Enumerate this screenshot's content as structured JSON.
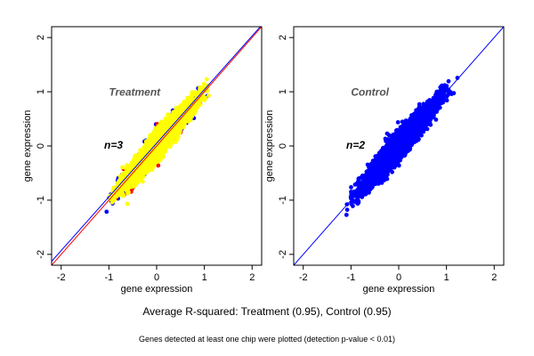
{
  "chart_data": [
    {
      "type": "scatter",
      "title": "Treatment",
      "annotation": "n=3",
      "xlabel": "gene expression",
      "ylabel": "gene expression",
      "xlim": [
        -2.2,
        2.2
      ],
      "ylim": [
        -2.2,
        2.2
      ],
      "xticks": [
        -2,
        -1,
        0,
        1,
        2
      ],
      "yticks": [
        -2,
        -1,
        0,
        1,
        2
      ],
      "grid": false,
      "layers": [
        {
          "color": "#0000ff",
          "n": 1800,
          "spread": 0.11,
          "xrange": [
            -1.05,
            1.1
          ]
        },
        {
          "color": "#ff0000",
          "n": 160,
          "spread": 0.14,
          "xrange": [
            -1.05,
            0.6
          ]
        },
        {
          "color": "#ffff00",
          "n": 5000,
          "spread": 0.12,
          "xrange": [
            -1.05,
            1.15
          ]
        }
      ],
      "fit_lines": [
        {
          "color": "#ff0000",
          "slope": 1.0,
          "intercept": 0.0
        },
        {
          "color": "#0000ff",
          "slope": 0.99,
          "intercept": 0.05
        }
      ]
    },
    {
      "type": "scatter",
      "title": "Control",
      "annotation": "n=2",
      "xlabel": "gene expression",
      "ylabel": "gene expression",
      "xlim": [
        -2.2,
        2.2
      ],
      "ylim": [
        -2.2,
        2.2
      ],
      "xticks": [
        -2,
        -1,
        0,
        1,
        2
      ],
      "yticks": [
        -2,
        -1,
        0,
        1,
        2
      ],
      "grid": false,
      "layers": [
        {
          "color": "#0000ff",
          "n": 5500,
          "spread": 0.12,
          "xrange": [
            -1.1,
            1.15
          ]
        }
      ],
      "fit_lines": [
        {
          "color": "#0000ff",
          "slope": 1.0,
          "intercept": 0.0
        }
      ]
    }
  ],
  "caption": "Average R-squared: Treatment (0.95), Control (0.95)",
  "footnote": "Genes detected at least one chip were plotted (detection p-value < 0.01)"
}
